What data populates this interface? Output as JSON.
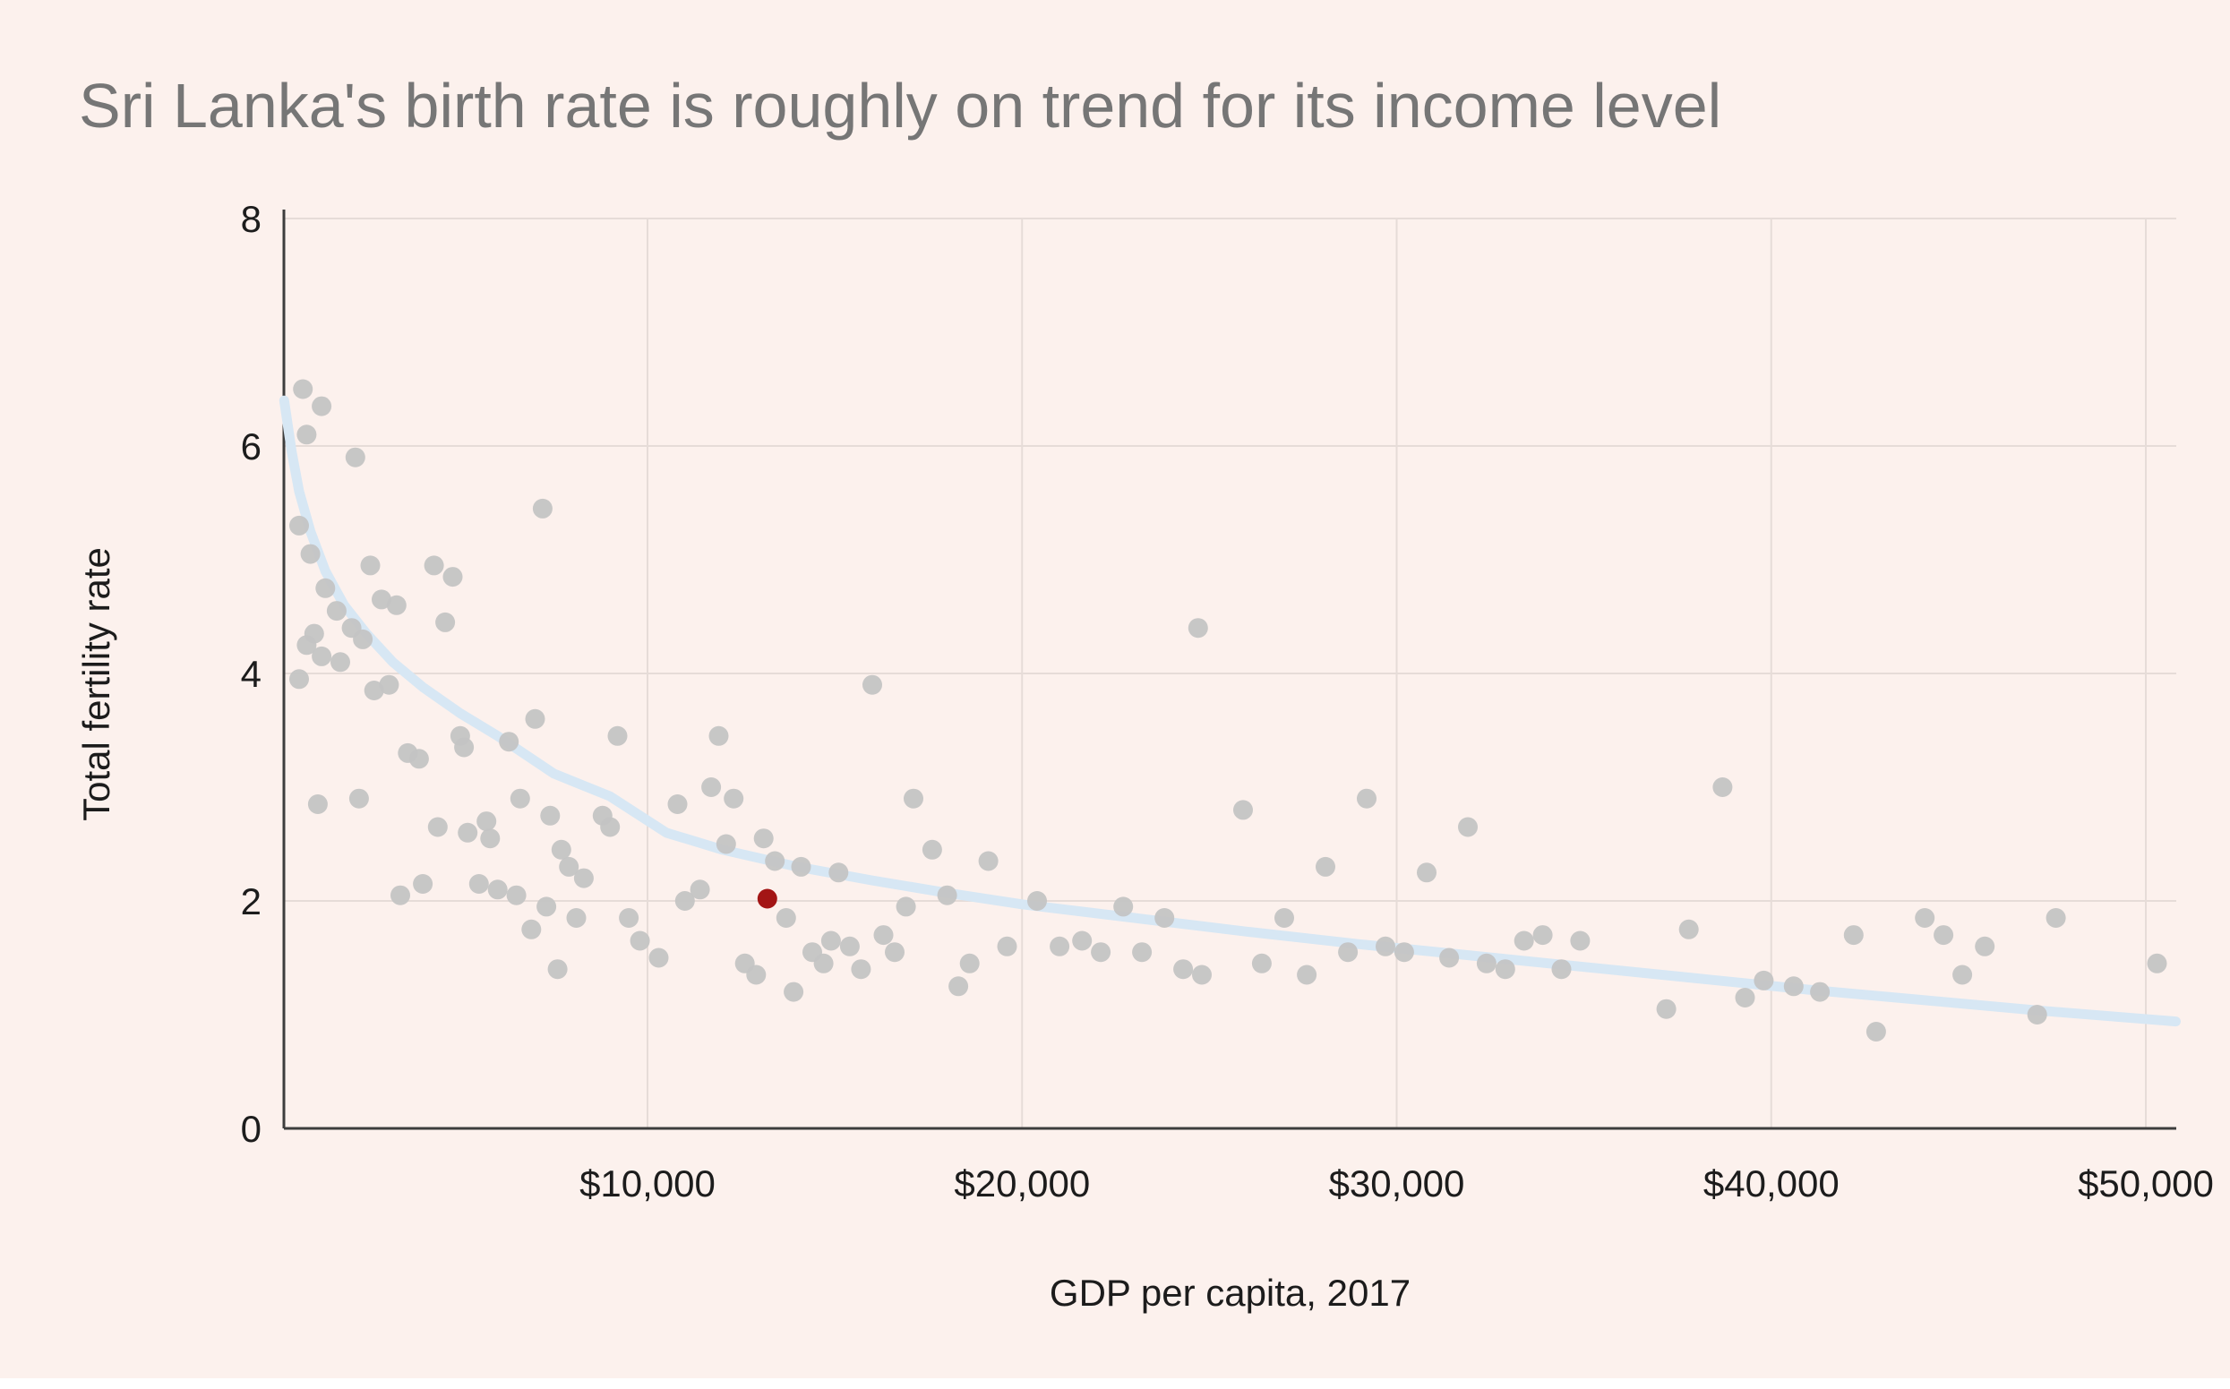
{
  "page": {
    "background_color": "#fcf1ed",
    "title": "Sri Lanka's birth rate is roughly on trend for its income level",
    "title_color": "#767676",
    "text_color": "#1c1c1c"
  },
  "chart_data": {
    "type": "scatter",
    "title": "Sri Lanka's birth rate is roughly on trend for its income level",
    "xlabel": "GDP per capita, 2017",
    "ylabel": "Total fertility rate",
    "xlim": [
      300,
      50800
    ],
    "ylim": [
      0,
      8
    ],
    "x_ticks": [
      10000,
      20000,
      30000,
      40000,
      50000
    ],
    "x_tick_labels": [
      "$10,000",
      "$20,000",
      "$30,000",
      "$40,000",
      "$50,000"
    ],
    "y_ticks": [
      0,
      2,
      4,
      6,
      8
    ],
    "y_tick_labels": [
      "0",
      "2",
      "4",
      "6",
      "8"
    ],
    "grid": true,
    "grid_color": "#e6dcd8",
    "axis_color": "#3d3d3d",
    "legend": "none",
    "series": [
      {
        "name": "countries",
        "color": "#c4c4c4",
        "opacity": 0.95,
        "point_name": "scatter-point",
        "points": [
          [
            800,
            6.5
          ],
          [
            1300,
            6.35
          ],
          [
            900,
            6.1
          ],
          [
            2200,
            5.9
          ],
          [
            700,
            5.3
          ],
          [
            1000,
            5.05
          ],
          [
            2600,
            4.95
          ],
          [
            4300,
            4.95
          ],
          [
            4800,
            4.85
          ],
          [
            1400,
            4.75
          ],
          [
            1700,
            4.55
          ],
          [
            2900,
            4.65
          ],
          [
            3300,
            4.6
          ],
          [
            4600,
            4.45
          ],
          [
            2100,
            4.4
          ],
          [
            1100,
            4.35
          ],
          [
            900,
            4.25
          ],
          [
            1300,
            4.15
          ],
          [
            1800,
            4.1
          ],
          [
            2400,
            4.3
          ],
          [
            700,
            3.95
          ],
          [
            2700,
            3.85
          ],
          [
            3100,
            3.9
          ],
          [
            3600,
            3.3
          ],
          [
            3900,
            3.25
          ],
          [
            1200,
            2.85
          ],
          [
            2300,
            2.9
          ],
          [
            3400,
            2.05
          ],
          [
            4400,
            2.65
          ],
          [
            4000,
            2.15
          ],
          [
            5000,
            3.45
          ],
          [
            5100,
            3.35
          ],
          [
            5200,
            2.6
          ],
          [
            5500,
            2.15
          ],
          [
            5700,
            2.7
          ],
          [
            5800,
            2.55
          ],
          [
            6000,
            2.1
          ],
          [
            6300,
            3.4
          ],
          [
            6500,
            2.05
          ],
          [
            6600,
            2.9
          ],
          [
            6900,
            1.75
          ],
          [
            7000,
            3.6
          ],
          [
            7200,
            5.45
          ],
          [
            7300,
            1.95
          ],
          [
            7400,
            2.75
          ],
          [
            7600,
            1.4
          ],
          [
            7700,
            2.45
          ],
          [
            7900,
            2.3
          ],
          [
            8100,
            1.85
          ],
          [
            8300,
            2.2
          ],
          [
            8800,
            2.75
          ],
          [
            9000,
            2.65
          ],
          [
            9200,
            3.45
          ],
          [
            9500,
            1.85
          ],
          [
            9800,
            1.65
          ],
          [
            10300,
            1.5
          ],
          [
            10800,
            2.85
          ],
          [
            11000,
            2.0
          ],
          [
            11400,
            2.1
          ],
          [
            11700,
            3.0
          ],
          [
            11900,
            3.45
          ],
          [
            12100,
            2.5
          ],
          [
            12300,
            2.9
          ],
          [
            12600,
            1.45
          ],
          [
            12900,
            1.35
          ],
          [
            13100,
            2.55
          ],
          [
            13400,
            2.35
          ],
          [
            13700,
            1.85
          ],
          [
            13900,
            1.2
          ],
          [
            14100,
            2.3
          ],
          [
            14400,
            1.55
          ],
          [
            14700,
            1.45
          ],
          [
            14900,
            1.65
          ],
          [
            15100,
            2.25
          ],
          [
            15400,
            1.6
          ],
          [
            15700,
            1.4
          ],
          [
            16000,
            3.9
          ],
          [
            16300,
            1.7
          ],
          [
            16600,
            1.55
          ],
          [
            16900,
            1.95
          ],
          [
            17100,
            2.9
          ],
          [
            17600,
            2.45
          ],
          [
            18000,
            2.05
          ],
          [
            18300,
            1.25
          ],
          [
            18600,
            1.45
          ],
          [
            19100,
            2.35
          ],
          [
            19600,
            1.6
          ],
          [
            20400,
            2.0
          ],
          [
            21000,
            1.6
          ],
          [
            21600,
            1.65
          ],
          [
            22100,
            1.55
          ],
          [
            22700,
            1.95
          ],
          [
            23200,
            1.55
          ],
          [
            23800,
            1.85
          ],
          [
            24300,
            1.4
          ],
          [
            24700,
            4.4
          ],
          [
            24800,
            1.35
          ],
          [
            25900,
            2.8
          ],
          [
            26400,
            1.45
          ],
          [
            27000,
            1.85
          ],
          [
            27600,
            1.35
          ],
          [
            28100,
            2.3
          ],
          [
            28700,
            1.55
          ],
          [
            29200,
            2.9
          ],
          [
            29700,
            1.6
          ],
          [
            30200,
            1.55
          ],
          [
            30800,
            2.25
          ],
          [
            31400,
            1.5
          ],
          [
            31900,
            2.65
          ],
          [
            32400,
            1.45
          ],
          [
            32900,
            1.4
          ],
          [
            33400,
            1.65
          ],
          [
            33900,
            1.7
          ],
          [
            34400,
            1.4
          ],
          [
            34900,
            1.65
          ],
          [
            37200,
            1.05
          ],
          [
            37800,
            1.75
          ],
          [
            38700,
            3.0
          ],
          [
            39300,
            1.15
          ],
          [
            39800,
            1.3
          ],
          [
            40600,
            1.25
          ],
          [
            41300,
            1.2
          ],
          [
            42200,
            1.7
          ],
          [
            42800,
            0.85
          ],
          [
            44100,
            1.85
          ],
          [
            44600,
            1.7
          ],
          [
            45100,
            1.35
          ],
          [
            45700,
            1.6
          ],
          [
            47100,
            1.0
          ],
          [
            47600,
            1.85
          ],
          [
            50300,
            1.45
          ]
        ]
      },
      {
        "name": "Sri Lanka",
        "color": "#a31515",
        "opacity": 1,
        "point_name": "sri-lanka-point",
        "points": [
          [
            13200,
            2.02
          ]
        ]
      }
    ],
    "trend": {
      "name": "trend-curve",
      "color": "#d7e7f4",
      "points": [
        [
          300,
          6.4
        ],
        [
          500,
          5.95
        ],
        [
          700,
          5.6
        ],
        [
          1000,
          5.25
        ],
        [
          1400,
          4.9
        ],
        [
          1900,
          4.6
        ],
        [
          2500,
          4.35
        ],
        [
          3200,
          4.1
        ],
        [
          4000,
          3.88
        ],
        [
          5000,
          3.65
        ],
        [
          6000,
          3.45
        ],
        [
          7500,
          3.12
        ],
        [
          9000,
          2.92
        ],
        [
          10500,
          2.6
        ],
        [
          12000,
          2.45
        ],
        [
          14000,
          2.3
        ],
        [
          16000,
          2.18
        ],
        [
          18000,
          2.07
        ],
        [
          20000,
          1.97
        ],
        [
          23000,
          1.85
        ],
        [
          26000,
          1.73
        ],
        [
          29000,
          1.62
        ],
        [
          32000,
          1.52
        ],
        [
          35000,
          1.42
        ],
        [
          38000,
          1.32
        ],
        [
          41000,
          1.22
        ],
        [
          44000,
          1.13
        ],
        [
          47000,
          1.04
        ],
        [
          50800,
          0.94
        ]
      ]
    }
  }
}
